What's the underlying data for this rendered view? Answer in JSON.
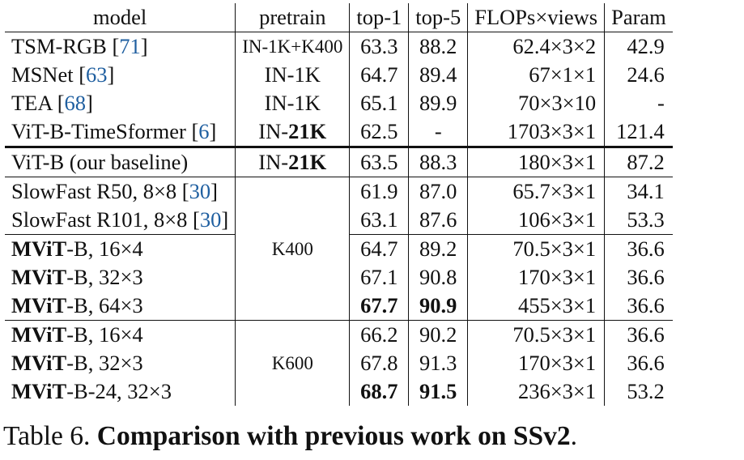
{
  "table": {
    "headers": [
      "model",
      "pretrain",
      "top-1",
      "top-5",
      "FLOPs×views",
      "Param"
    ],
    "rows": [
      {
        "model_pre": "TSM-RGB ",
        "model_bold": "",
        "model_rest": "",
        "ref": "71",
        "model_post": "",
        "pretrain_pre": "IN-1K+K400",
        "pretrain_bold": "",
        "top1": "63.3",
        "top1_bold": false,
        "top5": "88.2",
        "top5_bold": false,
        "flops": "62.4×3×2",
        "param": "42.9"
      },
      {
        "model_pre": "MSNet ",
        "model_bold": "",
        "model_rest": "",
        "ref": "63",
        "model_post": "",
        "pretrain_pre": "IN-1K",
        "pretrain_bold": "",
        "top1": "64.7",
        "top1_bold": false,
        "top5": "89.4",
        "top5_bold": false,
        "flops": "67×1×1",
        "param": "24.6"
      },
      {
        "model_pre": "TEA ",
        "model_bold": "",
        "model_rest": "",
        "ref": "68",
        "model_post": "",
        "pretrain_pre": "IN-1K",
        "pretrain_bold": "",
        "top1": "65.1",
        "top1_bold": false,
        "top5": "89.9",
        "top5_bold": false,
        "flops": "70×3×10",
        "param": "-"
      },
      {
        "model_pre": "ViT-B-TimeSformer ",
        "model_bold": "",
        "model_rest": "",
        "ref": "6",
        "model_post": "",
        "pretrain_pre": "IN-",
        "pretrain_bold": "21K",
        "top1": "62.5",
        "top1_bold": false,
        "top5": "-",
        "top5_bold": false,
        "flops": "1703×3×1",
        "param": "121.4"
      },
      {
        "model_pre": "ViT-B (our baseline)",
        "model_bold": "",
        "model_rest": "",
        "ref": "",
        "model_post": "",
        "pretrain_pre": "IN-",
        "pretrain_bold": "21K",
        "top1": "63.5",
        "top1_bold": false,
        "top5": "88.3",
        "top5_bold": false,
        "flops": "180×3×1",
        "param": "87.2"
      },
      {
        "model_pre": "SlowFast R50, 8×8 ",
        "model_bold": "",
        "model_rest": "",
        "ref": "30",
        "model_post": "",
        "top1": "61.9",
        "top1_bold": false,
        "top5": "87.0",
        "top5_bold": false,
        "flops": "65.7×3×1",
        "param": "34.1"
      },
      {
        "model_pre": "SlowFast R101, 8×8 ",
        "model_bold": "",
        "model_rest": "",
        "ref": "30",
        "model_post": "",
        "top1": "63.1",
        "top1_bold": false,
        "top5": "87.6",
        "top5_bold": false,
        "flops": "106×3×1",
        "param": "53.3"
      },
      {
        "model_pre": "",
        "model_bold": "MViT",
        "model_rest": "-B, 16×4",
        "ref": "",
        "model_post": "",
        "top1": "64.7",
        "top1_bold": false,
        "top5": "89.2",
        "top5_bold": false,
        "flops": "70.5×3×1",
        "param": "36.6"
      },
      {
        "model_pre": "",
        "model_bold": "MViT",
        "model_rest": "-B, 32×3",
        "ref": "",
        "model_post": "",
        "top1": "67.1",
        "top1_bold": false,
        "top5": "90.8",
        "top5_bold": false,
        "flops": "170×3×1",
        "param": "36.6"
      },
      {
        "model_pre": "",
        "model_bold": "MViT",
        "model_rest": "-B, 64×3",
        "ref": "",
        "model_post": "",
        "top1": "67.7",
        "top1_bold": true,
        "top5": "90.9",
        "top5_bold": true,
        "flops": "455×3×1",
        "param": "36.6"
      },
      {
        "model_pre": "",
        "model_bold": "MViT",
        "model_rest": "-B, 16×4",
        "ref": "",
        "model_post": "",
        "top1": "66.2",
        "top1_bold": false,
        "top5": "90.2",
        "top5_bold": false,
        "flops": "70.5×3×1",
        "param": "36.6"
      },
      {
        "model_pre": "",
        "model_bold": "MViT",
        "model_rest": "-B, 32×3",
        "ref": "",
        "model_post": "",
        "top1": "67.8",
        "top1_bold": false,
        "top5": "91.3",
        "top5_bold": false,
        "flops": "170×3×1",
        "param": "36.6"
      },
      {
        "model_pre": "",
        "model_bold": "MViT",
        "model_rest": "-B-24, 32×3",
        "ref": "",
        "model_post": "",
        "top1": "68.7",
        "top1_bold": true,
        "top5": "91.5",
        "top5_bold": true,
        "flops": "236×3×1",
        "param": "53.2"
      }
    ],
    "groups": {
      "k400_label": "K400",
      "k600_label": "K600"
    }
  },
  "caption": {
    "label": "Table 6. ",
    "title": "Comparison with previous work on SSv2",
    "end": "."
  }
}
